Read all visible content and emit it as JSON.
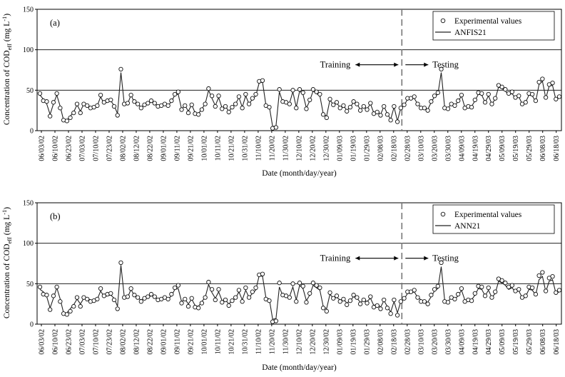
{
  "chart_data": [
    {
      "type": "scatter",
      "panel_label": "(a)",
      "xlabel": "Date (month/day/year)",
      "ylabel": "Concentration of COD",
      "ylabel_sub": "eff",
      "ylabel_unit": " (mg L",
      "ylabel_sup": "-1",
      "ylabel_close": ")",
      "ylim": [
        0,
        150
      ],
      "yticks": [
        0,
        50,
        100,
        150
      ],
      "xtick_labels": [
        "06/03/02",
        "06/10/02",
        "06/23/02",
        "07/03/02",
        "07/10/02",
        "07/23/02",
        "08/02/02",
        "08/12/02",
        "08/22/02",
        "09/01/02",
        "09/11/02",
        "09/21/02",
        "10/01/02",
        "10/11/02",
        "10/21/02",
        "10/31/02",
        "11/10/02",
        "11/20/02",
        "11/30/02",
        "12/10/02",
        "12/20/02",
        "12/30/02",
        "01/09/03",
        "01/19/03",
        "01/29/03",
        "02/08/03",
        "02/18/03",
        "02/28/03",
        "03/10/03",
        "03/20/03",
        "03/30/03",
        "04/09/03",
        "04/19/03",
        "04/29/03",
        "05/09/03",
        "05/19/03",
        "05/29/03",
        "06/08/03",
        "06/18/03"
      ],
      "training_label": "Training",
      "testing_label": "Testing",
      "split_after_tick": 26,
      "legend": [
        "Experimental values",
        "ANFIS21"
      ],
      "legend_position": "top-right",
      "series": [
        {
          "name": "Experimental values",
          "kind": "markers",
          "values": [
            46,
            37,
            36,
            18,
            35,
            46,
            28,
            13,
            12,
            16,
            22,
            33,
            22,
            33,
            31,
            28,
            29,
            31,
            44,
            35,
            37,
            38,
            30,
            19,
            76,
            33,
            34,
            44,
            36,
            33,
            28,
            32,
            34,
            37,
            34,
            30,
            31,
            33,
            31,
            37,
            45,
            48,
            26,
            31,
            22,
            32,
            21,
            20,
            26,
            33,
            52,
            43,
            30,
            43,
            27,
            30,
            23,
            29,
            33,
            42,
            28,
            45,
            33,
            40,
            45,
            61,
            62,
            31,
            29,
            3,
            4,
            51,
            36,
            35,
            33,
            50,
            28,
            51,
            47,
            27,
            38,
            51,
            48,
            45,
            20,
            16,
            39,
            32,
            35,
            28,
            31,
            24,
            29,
            36,
            33,
            25,
            30,
            26,
            34,
            21,
            23,
            19,
            30,
            20,
            13,
            30,
            11,
            28,
            32,
            40,
            40,
            42,
            33,
            28,
            28,
            25,
            36,
            43,
            47,
            76,
            28,
            27,
            33,
            31,
            37,
            44,
            28,
            30,
            29,
            38,
            47,
            46,
            35,
            45,
            33,
            40,
            56,
            54,
            51,
            46,
            48,
            41,
            43,
            33,
            35,
            46,
            45,
            37,
            60,
            64,
            41,
            57,
            59,
            39,
            42
          ]
        },
        {
          "name": "ANFIS21",
          "kind": "line",
          "values": [
            44,
            39,
            33,
            20,
            33,
            44,
            30,
            13,
            13,
            18,
            23,
            32,
            24,
            33,
            32,
            29,
            30,
            31,
            42,
            33,
            36,
            37,
            31,
            21,
            72,
            33,
            33,
            44,
            35,
            33,
            29,
            32,
            33,
            36,
            34,
            30,
            32,
            33,
            31,
            36,
            44,
            45,
            27,
            31,
            24,
            32,
            22,
            21,
            27,
            33,
            50,
            40,
            31,
            41,
            28,
            30,
            24,
            29,
            33,
            41,
            29,
            43,
            33,
            39,
            43,
            59,
            60,
            32,
            30,
            5,
            6,
            48,
            35,
            35,
            34,
            48,
            29,
            49,
            45,
            28,
            37,
            49,
            46,
            43,
            21,
            18,
            38,
            32,
            34,
            29,
            31,
            25,
            29,
            35,
            33,
            26,
            30,
            27,
            33,
            22,
            24,
            20,
            30,
            21,
            14,
            29,
            12,
            28,
            31,
            39,
            39,
            40,
            33,
            29,
            29,
            26,
            35,
            42,
            45,
            72,
            29,
            28,
            33,
            31,
            36,
            43,
            29,
            30,
            30,
            37,
            45,
            44,
            35,
            43,
            33,
            39,
            54,
            52,
            49,
            44,
            46,
            40,
            42,
            33,
            35,
            44,
            43,
            36,
            57,
            61,
            40,
            55,
            56,
            38,
            41
          ]
        }
      ]
    },
    {
      "type": "scatter",
      "panel_label": "(b)",
      "xlabel": "Date (month/day/year)",
      "ylabel": "Concentration of COD",
      "ylabel_sub": "eff",
      "ylabel_unit": " (mg L",
      "ylabel_sup": "-1",
      "ylabel_close": ")",
      "ylim": [
        0,
        150
      ],
      "yticks": [
        0,
        50,
        100,
        150
      ],
      "xtick_labels": [
        "06/03/02",
        "06/10/02",
        "06/23/02",
        "07/03/02",
        "07/10/02",
        "07/23/02",
        "08/02/02",
        "08/12/02",
        "08/22/02",
        "09/01/02",
        "09/11/02",
        "09/21/02",
        "10/01/02",
        "10/11/02",
        "10/21/02",
        "10/31/02",
        "11/10/02",
        "11/20/02",
        "11/30/02",
        "12/10/02",
        "12/20/02",
        "12/30/02",
        "01/09/03",
        "01/19/03",
        "01/29/03",
        "02/08/03",
        "02/18/03",
        "02/28/03",
        "03/10/03",
        "03/20/03",
        "03/30/03",
        "04/09/03",
        "04/19/03",
        "04/29/03",
        "05/09/03",
        "05/19/03",
        "05/29/03",
        "06/08/03",
        "06/18/03"
      ],
      "training_label": "Training",
      "testing_label": "Testing",
      "split_after_tick": 26,
      "legend": [
        "Experimental values",
        "ANN21"
      ],
      "legend_position": "top-right",
      "series": [
        {
          "name": "Experimental values",
          "kind": "markers",
          "values": [
            46,
            37,
            36,
            18,
            35,
            46,
            28,
            13,
            12,
            16,
            22,
            33,
            22,
            33,
            31,
            28,
            29,
            31,
            44,
            35,
            37,
            38,
            30,
            19,
            76,
            33,
            34,
            44,
            36,
            33,
            28,
            32,
            34,
            37,
            34,
            30,
            31,
            33,
            31,
            37,
            45,
            48,
            26,
            31,
            22,
            32,
            21,
            20,
            26,
            33,
            52,
            43,
            30,
            43,
            27,
            30,
            23,
            29,
            33,
            42,
            28,
            45,
            33,
            40,
            45,
            61,
            62,
            31,
            29,
            3,
            4,
            51,
            36,
            35,
            33,
            50,
            28,
            51,
            47,
            27,
            38,
            51,
            48,
            45,
            20,
            16,
            39,
            32,
            35,
            28,
            31,
            24,
            29,
            36,
            33,
            25,
            30,
            26,
            34,
            21,
            23,
            19,
            30,
            20,
            13,
            30,
            11,
            28,
            32,
            40,
            40,
            42,
            33,
            28,
            28,
            25,
            36,
            43,
            47,
            76,
            28,
            27,
            33,
            31,
            37,
            44,
            28,
            30,
            29,
            38,
            47,
            46,
            35,
            45,
            33,
            40,
            56,
            54,
            51,
            46,
            48,
            41,
            43,
            33,
            35,
            46,
            45,
            37,
            60,
            64,
            41,
            57,
            59,
            39,
            42
          ]
        },
        {
          "name": "ANN21",
          "kind": "line",
          "values": [
            43,
            40,
            34,
            20,
            32,
            45,
            31,
            14,
            14,
            19,
            24,
            31,
            25,
            32,
            32,
            30,
            30,
            31,
            41,
            34,
            35,
            36,
            32,
            22,
            73,
            34,
            33,
            43,
            35,
            32,
            30,
            32,
            33,
            35,
            34,
            31,
            32,
            33,
            31,
            35,
            43,
            44,
            28,
            31,
            25,
            31,
            23,
            22,
            28,
            33,
            49,
            39,
            32,
            40,
            29,
            30,
            25,
            29,
            32,
            40,
            30,
            42,
            33,
            38,
            42,
            60,
            59,
            33,
            31,
            6,
            7,
            46,
            35,
            34,
            34,
            46,
            30,
            48,
            44,
            29,
            36,
            48,
            45,
            42,
            22,
            19,
            37,
            32,
            33,
            30,
            31,
            26,
            29,
            34,
            32,
            27,
            30,
            28,
            32,
            23,
            25,
            21,
            29,
            22,
            15,
            28,
            14,
            28,
            31,
            38,
            38,
            40,
            33,
            30,
            29,
            27,
            34,
            41,
            44,
            71,
            30,
            28,
            33,
            31,
            35,
            42,
            30,
            30,
            30,
            36,
            44,
            43,
            35,
            42,
            33,
            38,
            53,
            51,
            48,
            43,
            45,
            40,
            41,
            33,
            34,
            43,
            42,
            36,
            55,
            59,
            40,
            53,
            55,
            38,
            40
          ]
        }
      ]
    }
  ]
}
